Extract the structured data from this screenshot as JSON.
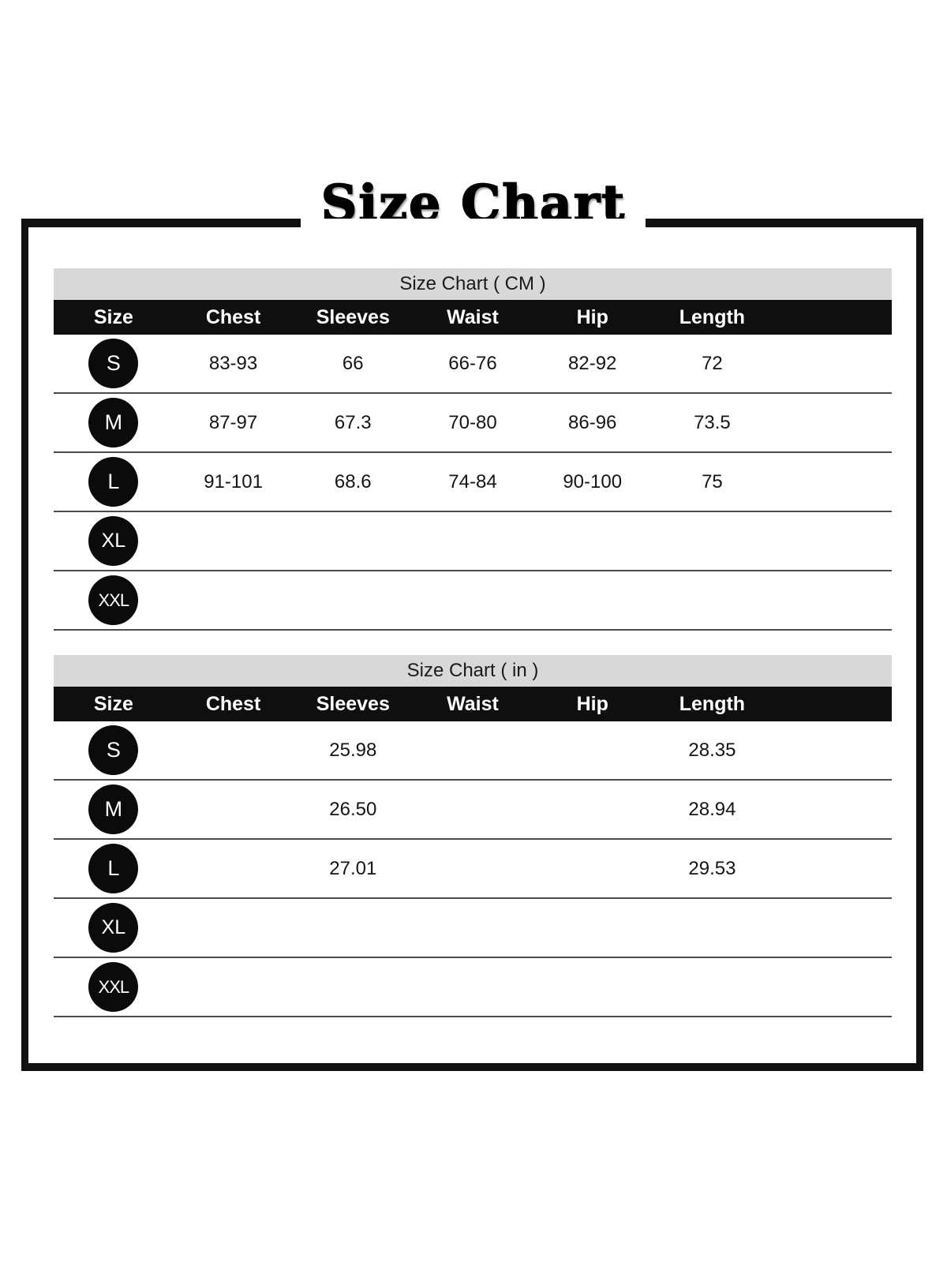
{
  "page_title": "Size Chart",
  "colors": {
    "frame_border": "#111111",
    "banner_bg": "#d8d8d8",
    "header_bg": "#0f0f0f",
    "header_text": "#ffffff",
    "badge_bg": "#0b0b0b",
    "row_line": "#4a4a4a",
    "body_text": "#151515"
  },
  "chart_data": [
    {
      "type": "table",
      "title": "Size Chart ( CM )",
      "columns": [
        "Size",
        "Chest",
        "Sleeves",
        "Waist",
        "Hip",
        "Length"
      ],
      "rows": [
        [
          "S",
          "83-93",
          "66",
          "66-76",
          "82-92",
          "72"
        ],
        [
          "M",
          "87-97",
          "67.3",
          "70-80",
          "86-96",
          "73.5"
        ],
        [
          "L",
          "91-101",
          "68.6",
          "74-84",
          "90-100",
          "75"
        ],
        [
          "XL",
          "",
          "",
          "",
          "",
          ""
        ],
        [
          "XXL",
          "",
          "",
          "",
          "",
          ""
        ]
      ]
    },
    {
      "type": "table",
      "title": "Size Chart ( in )",
      "columns": [
        "Size",
        "Chest",
        "Sleeves",
        "Waist",
        "Hip",
        "Length"
      ],
      "rows": [
        [
          "S",
          "",
          "25.98",
          "",
          "",
          "28.35"
        ],
        [
          "M",
          "",
          "26.50",
          "",
          "",
          "28.94"
        ],
        [
          "L",
          "",
          "27.01",
          "",
          "",
          "29.53"
        ],
        [
          "XL",
          "",
          "",
          "",
          "",
          ""
        ],
        [
          "XXL",
          "",
          "",
          "",
          "",
          ""
        ]
      ]
    }
  ]
}
